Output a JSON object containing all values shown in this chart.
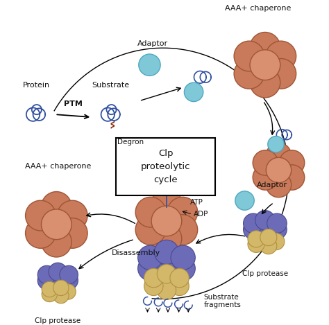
{
  "bg_color": "#ffffff",
  "chaperone_color": "#c87a5a",
  "chaperone_dark": "#a05535",
  "chaperone_light": "#d99070",
  "protease_top_color": "#6b6bb8",
  "protease_top_dark": "#4a4a90",
  "protease_bottom_color": "#d4b86a",
  "protease_bottom_dark": "#b09040",
  "adaptor_color": "#7ec8d8",
  "adaptor_dark": "#50a8c0",
  "protein_color": "#3050a0",
  "degron_color": "#8b3010",
  "text_color": "#111111",
  "title_text": "Clp\nproteolytic\ncycle",
  "labels": {
    "protein": "Protein",
    "substrate": "Substrate",
    "adaptor_top": "Adaptor",
    "ptm": "PTM",
    "degron": "Degron",
    "aaa_chaperone_top": "AAA+ chaperone",
    "aaa_chaperone_left": "AAA+ chaperone",
    "adaptor_mid": "Adaptor",
    "clp_protease_right": "Clp protease",
    "clp_protease_left": "Clp protease",
    "atp": "ATP",
    "adp": "ADP",
    "disassembly": "Disassembly",
    "substrate_fragments": "Substrate\nfragments"
  }
}
